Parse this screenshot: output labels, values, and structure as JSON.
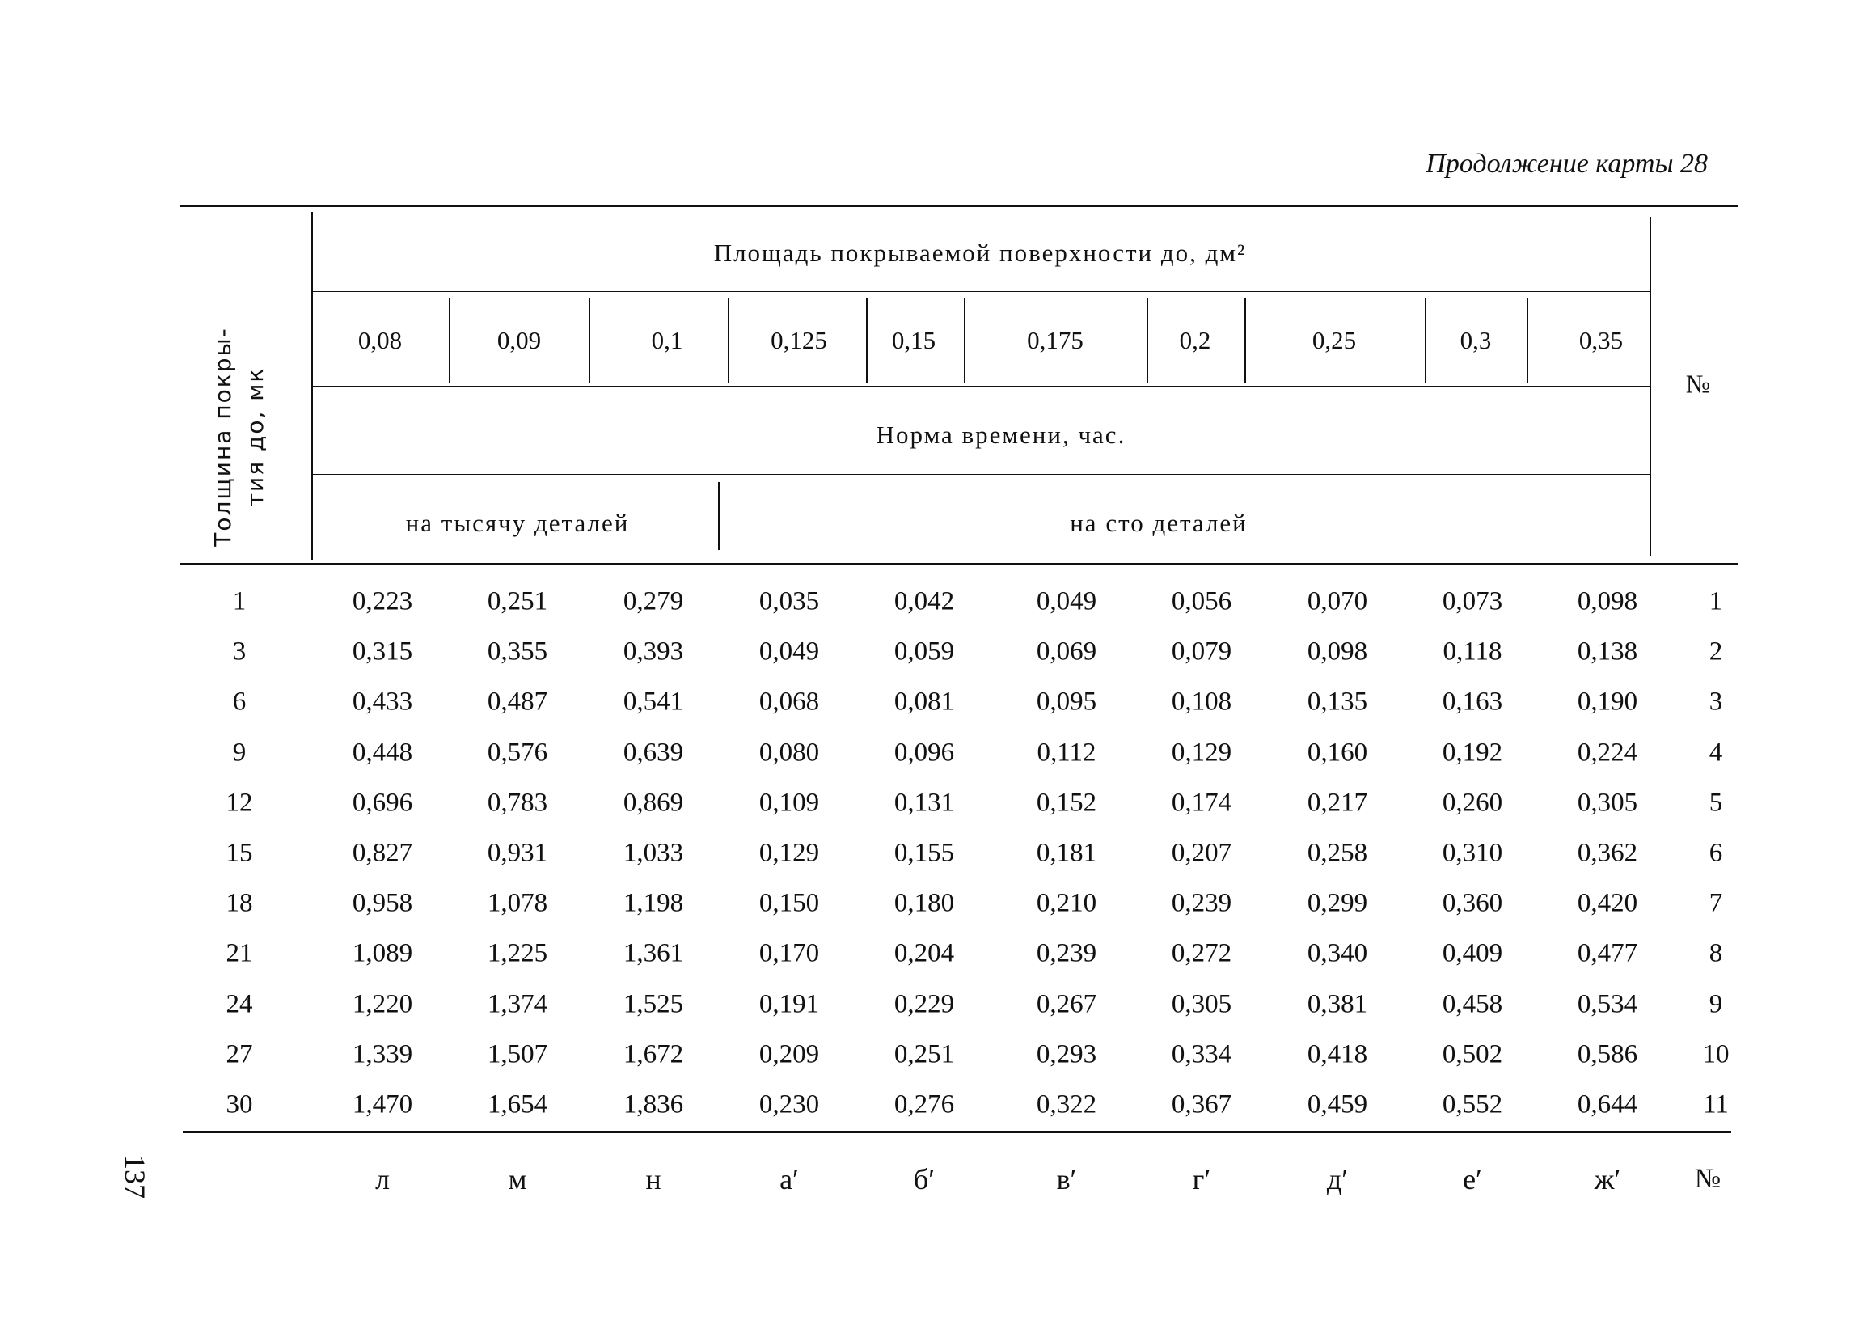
{
  "page_title": "Продолжение карты 28",
  "page_number": "137",
  "header": {
    "thickness_label_line1": "Толщина покры-",
    "thickness_label_line2": "тия до, мк",
    "area_label": "Площадь покрываемой поверхности до, дм²",
    "areas": [
      "0,08",
      "0,09",
      "0,1",
      "0,125",
      "0,15",
      "0,175",
      "0,2",
      "0,25",
      "0,3",
      "0,35"
    ],
    "norm_label": "Норма времени, час.",
    "per_thousand": "на тысячу деталей",
    "per_hundred": "на сто деталей",
    "number_label": "№"
  },
  "rows": [
    {
      "thickness": "1",
      "values": [
        "0,223",
        "0,251",
        "0,279",
        "0,035",
        "0,042",
        "0,049",
        "0,056",
        "0,070",
        "0,073",
        "0,098"
      ],
      "no": "1"
    },
    {
      "thickness": "3",
      "values": [
        "0,315",
        "0,355",
        "0,393",
        "0,049",
        "0,059",
        "0,069",
        "0,079",
        "0,098",
        "0,118",
        "0,138"
      ],
      "no": "2"
    },
    {
      "thickness": "6",
      "values": [
        "0,433",
        "0,487",
        "0,541",
        "0,068",
        "0,081",
        "0,095",
        "0,108",
        "0,135",
        "0,163",
        "0,190"
      ],
      "no": "3"
    },
    {
      "thickness": "9",
      "values": [
        "0,448",
        "0,576",
        "0,639",
        "0,080",
        "0,096",
        "0,112",
        "0,129",
        "0,160",
        "0,192",
        "0,224"
      ],
      "no": "4"
    },
    {
      "thickness": "12",
      "values": [
        "0,696",
        "0,783",
        "0,869",
        "0,109",
        "0,131",
        "0,152",
        "0,174",
        "0,217",
        "0,260",
        "0,305"
      ],
      "no": "5"
    },
    {
      "thickness": "15",
      "values": [
        "0,827",
        "0,931",
        "1,033",
        "0,129",
        "0,155",
        "0,181",
        "0,207",
        "0,258",
        "0,310",
        "0,362"
      ],
      "no": "6"
    },
    {
      "thickness": "18",
      "values": [
        "0,958",
        "1,078",
        "1,198",
        "0,150",
        "0,180",
        "0,210",
        "0,239",
        "0,299",
        "0,360",
        "0,420"
      ],
      "no": "7"
    },
    {
      "thickness": "21",
      "values": [
        "1,089",
        "1,225",
        "1,361",
        "0,170",
        "0,204",
        "0,239",
        "0,272",
        "0,340",
        "0,409",
        "0,477"
      ],
      "no": "8"
    },
    {
      "thickness": "24",
      "values": [
        "1,220",
        "1,374",
        "1,525",
        "0,191",
        "0,229",
        "0,267",
        "0,305",
        "0,381",
        "0,458",
        "0,534"
      ],
      "no": "9"
    },
    {
      "thickness": "27",
      "values": [
        "1,339",
        "1,507",
        "1,672",
        "0,209",
        "0,251",
        "0,293",
        "0,334",
        "0,418",
        "0,502",
        "0,586"
      ],
      "no": "10"
    },
    {
      "thickness": "30",
      "values": [
        "1,470",
        "1,654",
        "1,836",
        "0,230",
        "0,276",
        "0,322",
        "0,367",
        "0,459",
        "0,552",
        "0,644"
      ],
      "no": "11"
    }
  ],
  "column_letters": [
    "л",
    "м",
    "н",
    "а′",
    "б′",
    "в′",
    "г′",
    "д′",
    "е′",
    "ж′"
  ],
  "footer_number_label": "№"
}
